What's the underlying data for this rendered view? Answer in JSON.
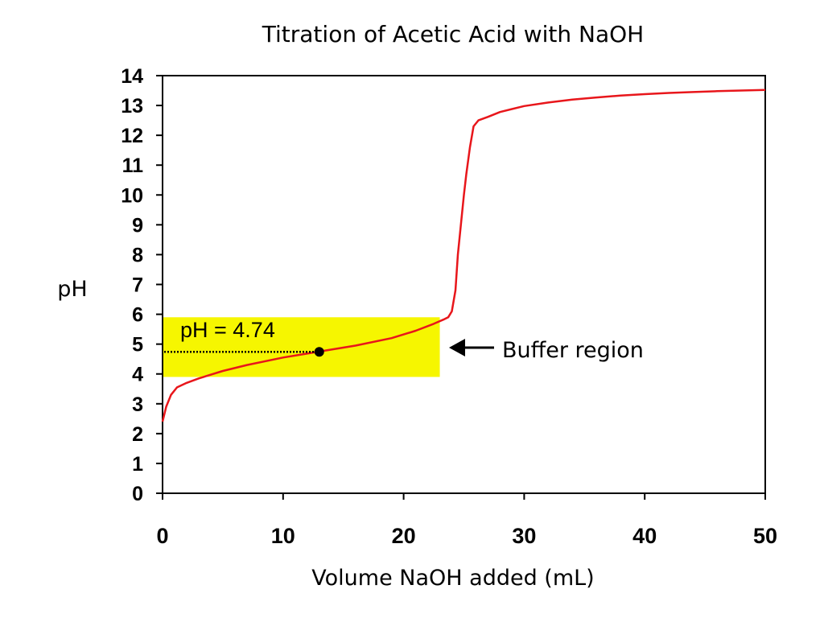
{
  "chart_data": {
    "type": "line",
    "title": "Titration of Acetic Acid with NaOH",
    "xlabel": "Volume NaOH added (mL)",
    "ylabel": "pH",
    "xlim": [
      0,
      50
    ],
    "ylim": [
      0,
      14
    ],
    "x_ticks": [
      0,
      10,
      20,
      30,
      40,
      50
    ],
    "y_ticks": [
      0,
      1,
      2,
      3,
      4,
      5,
      6,
      7,
      8,
      9,
      10,
      11,
      12,
      13,
      14
    ],
    "grid": false,
    "line_color": "#e8161b",
    "series": [
      {
        "x": [
          0,
          0.3,
          0.7,
          1.2,
          2,
          3,
          5,
          7,
          10,
          13,
          16,
          19,
          21,
          22.5,
          23.3,
          23.7,
          24,
          24.3,
          24.5,
          24.8,
          25,
          25.2,
          25.5,
          25.8,
          26.2,
          27,
          28,
          30,
          32,
          34,
          36,
          38,
          40,
          42,
          44,
          46,
          48,
          50
        ],
        "y": [
          2.4,
          2.9,
          3.3,
          3.55,
          3.7,
          3.85,
          4.1,
          4.3,
          4.55,
          4.75,
          4.95,
          5.2,
          5.45,
          5.68,
          5.82,
          5.9,
          6.1,
          6.8,
          8.0,
          9.2,
          10.0,
          10.7,
          11.6,
          12.3,
          12.5,
          12.62,
          12.78,
          12.98,
          13.1,
          13.2,
          13.27,
          13.33,
          13.38,
          13.42,
          13.45,
          13.48,
          13.5,
          13.52
        ]
      }
    ],
    "buffer_region": {
      "x_range": [
        0,
        23
      ],
      "y_range": [
        3.9,
        5.9
      ],
      "color": "#f6f600",
      "label": "Buffer region"
    },
    "half_equivalence": {
      "x": 13,
      "y": 4.74,
      "label": "pH = 4.74"
    }
  }
}
